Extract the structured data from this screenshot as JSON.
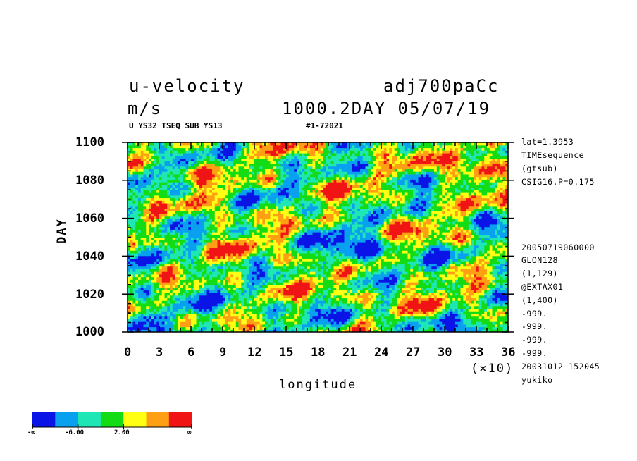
{
  "header": {
    "variable": "u-velocity",
    "units": "m/s",
    "experiment": "adj700paCc",
    "time_info": "1000.2DAY 05/07/19",
    "subtitle_left": "U YS32 TSEQ SUB YS13",
    "subtitle_right": "#1-72021"
  },
  "side_info": {
    "top": [
      "lat=1.3953",
      "TIMEsequence",
      "(gtsub)",
      "CSIG16.P=0.175"
    ],
    "bottom": [
      "20050719060000",
      "GLON128",
      "(1,129)",
      "@EXTAX01",
      "(1,400)",
      "-999.",
      "-999.",
      "-999.",
      "-999.",
      "20031012 152045",
      "yukiko"
    ]
  },
  "chart_data": {
    "type": "heatmap",
    "title": "u-velocity",
    "xlabel": "longitude",
    "ylabel": "DAY",
    "x_multiplier_label": "(×10)",
    "xlim": [
      0,
      36
    ],
    "ylim": [
      1000,
      1100
    ],
    "x_ticks": [
      "0",
      "3",
      "6",
      "9",
      "12",
      "15",
      "18",
      "21",
      "24",
      "27",
      "30",
      "33",
      "36"
    ],
    "y_ticks": [
      "1000",
      "1020",
      "1040",
      "1060",
      "1080",
      "1100"
    ],
    "colorbar": {
      "colors": [
        "#0a14e6",
        "#0aa0f0",
        "#1ee6b4",
        "#14dc14",
        "#ffff14",
        "#ffa014",
        "#f01414"
      ],
      "labels": [
        "-∞",
        "-6.00",
        "2.00",
        "∞"
      ]
    },
    "features": [
      {
        "region": "strong negative (blue) patch",
        "lon_range": [
          190,
          240
        ],
        "day_range": [
          1032,
          1052
        ]
      },
      {
        "region": "strong positive (red) patch",
        "lon_range": [
          300,
          360
        ],
        "day_range": [
          1078,
          1100
        ]
      },
      {
        "region": "positive (red) band",
        "lon_range": [
          0,
          10
        ],
        "day_range": [
          1038,
          1055
        ]
      }
    ]
  }
}
